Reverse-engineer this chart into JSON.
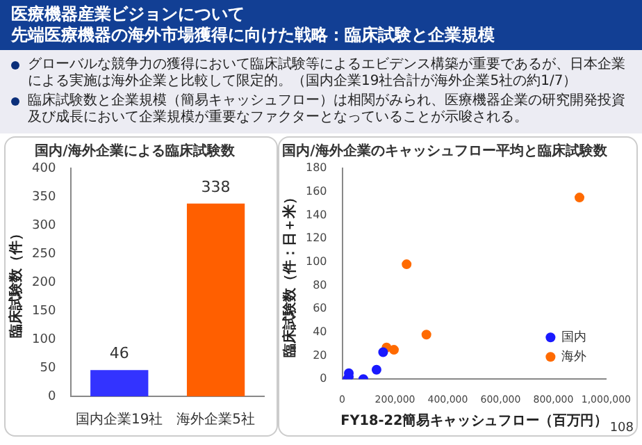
{
  "chart_data": [
    {
      "type": "other",
      "title": "医療機器産業ビジョンについて",
      "subtitle": "先端医療機器の海外市場獲得に向けた戦略：臨床試験と企業規模",
      "annotations": [
        "グローバルな競争力の獲得において臨床試験等によるエビデンス構築が重要であるが、日本企業による実施は海外企業と比較して限定的。（国内企業19社合計が海外企業5社の約1/7）",
        "臨床試験数と企業規模（簡易キャッシュフロー）は相関がみられ、医療機器企業の研究開発投資及び成長において企業規模が重要なファクターとなっていることが示唆される。"
      ]
    },
    {
      "type": "bar",
      "title": "国内/海外企業による臨床試験数",
      "ylabel": "臨床試験数（件）",
      "categories": [
        "国内企業19社",
        "海外企業5社"
      ],
      "values": [
        46,
        338
      ],
      "colors": [
        "#3333ff",
        "#ff5f00"
      ],
      "ylim": [
        0,
        400
      ],
      "yticks": [
        0,
        50,
        100,
        150,
        200,
        250,
        300,
        350,
        400
      ],
      "data_labels": true
    },
    {
      "type": "scatter",
      "title": "国内/海外企業のキャッシュフロー平均と臨床試験数",
      "xlabel": "FY18-22簡易キャッシュフロー（百万円）",
      "ylabel": "臨床試験数（件：日＋米）",
      "legend": "bottom right",
      "xlim": [
        0,
        1000000
      ],
      "xticks": [
        {
          "value": 0,
          "label": "0"
        },
        {
          "value": 200000,
          "label": "200,000"
        },
        {
          "value": 400000,
          "label": "400,000"
        },
        {
          "value": 600000,
          "label": "600,000"
        },
        {
          "value": 800000,
          "label": "800,000"
        },
        {
          "value": 1000000,
          "label": "1,000,000"
        }
      ],
      "ylim": [
        0,
        180
      ],
      "yticks": [
        0,
        20,
        40,
        60,
        80,
        100,
        120,
        140,
        160,
        180
      ],
      "annotations": [
        "108"
      ],
      "series": [
        {
          "name": "国内",
          "color": "#1a1aff",
          "x": [
            20000,
            25000,
            25000,
            80000,
            130000,
            155000
          ],
          "values": [
            0,
            2,
            5,
            0,
            8,
            23
          ]
        },
        {
          "name": "海外",
          "color": "#ff6a00",
          "x": [
            168000,
            196000,
            244000,
            319000,
            899000
          ],
          "values": [
            27,
            25,
            98,
            38,
            155
          ]
        }
      ]
    }
  ]
}
